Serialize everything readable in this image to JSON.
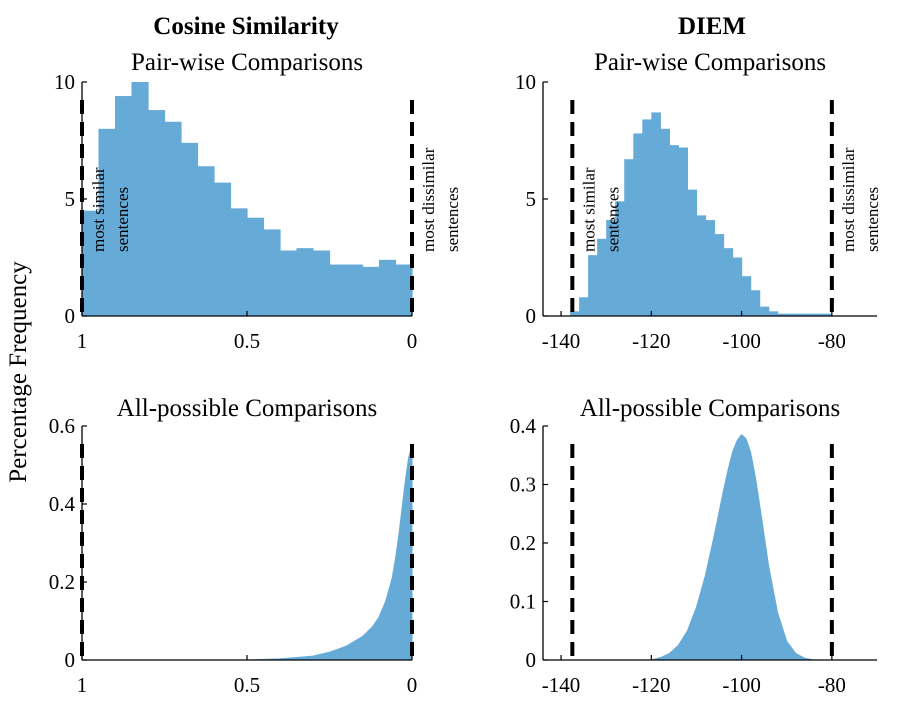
{
  "figure": {
    "ylabel": "Percentage Frequency",
    "colors": {
      "fill": "#66aad8",
      "axis": "#000000",
      "threshold": "#000000"
    },
    "column_titles": [
      "Cosine Similarity",
      "DIEM"
    ]
  },
  "chart_data": [
    {
      "type": "bar",
      "title": "Cosine Similarity",
      "subtitle": "Pair-wise Comparisons",
      "xlabel": "",
      "ylabel": "Percentage Frequency",
      "xlim": [
        1,
        0
      ],
      "x_reversed": true,
      "ylim": [
        0,
        10
      ],
      "xticks": [
        1,
        0.5,
        0
      ],
      "xtick_labels": [
        "1",
        "0.5",
        "0"
      ],
      "yticks": [
        0,
        5,
        10
      ],
      "ytick_labels": [
        "0",
        "5",
        "10"
      ],
      "bin_edges": [
        1,
        0.95,
        0.9,
        0.85,
        0.8,
        0.75,
        0.7,
        0.65,
        0.6,
        0.55,
        0.5,
        0.45,
        0.4,
        0.35,
        0.3,
        0.25,
        0.2,
        0.15,
        0.1,
        0.05,
        0
      ],
      "values": [
        4.5,
        8.0,
        9.4,
        10.0,
        8.8,
        8.3,
        7.4,
        6.4,
        5.7,
        4.6,
        4.2,
        3.7,
        2.8,
        2.9,
        2.8,
        2.2,
        2.2,
        2.1,
        2.4,
        2.2
      ],
      "thresholds": [
        1,
        0
      ],
      "annotations": [
        {
          "lines": [
            "most similar",
            "sentences"
          ],
          "x": 1
        },
        {
          "lines": [
            "most dissimilar",
            "sentences"
          ],
          "x": 0
        }
      ]
    },
    {
      "type": "bar",
      "title": "DIEM",
      "subtitle": "Pair-wise Comparisons",
      "xlabel": "",
      "ylabel": "",
      "xlim": [
        -144,
        -70
      ],
      "ylim": [
        0,
        10
      ],
      "xticks": [
        -140,
        -120,
        -100,
        -80
      ],
      "xtick_labels": [
        "-140",
        "-120",
        "-100",
        "-80"
      ],
      "yticks": [
        0,
        5,
        10
      ],
      "ytick_labels": [
        "0",
        "5",
        "10"
      ],
      "bin_edges": [
        -138,
        -136,
        -134,
        -132,
        -130,
        -128,
        -126,
        -124,
        -122,
        -120,
        -118,
        -116,
        -114,
        -112,
        -110,
        -108,
        -106,
        -104,
        -102,
        -100,
        -98,
        -96,
        -94,
        -92,
        -90,
        -88,
        -86,
        -84,
        -82,
        -80
      ],
      "values": [
        0.2,
        0.8,
        2.6,
        3.3,
        4.1,
        4.9,
        6.7,
        7.8,
        8.4,
        8.7,
        8.0,
        7.3,
        7.2,
        5.4,
        4.3,
        4.1,
        3.5,
        2.9,
        2.5,
        1.7,
        1.1,
        0.4,
        0.2,
        0.1,
        0.1,
        0.1,
        0.1,
        0.1,
        0.1
      ],
      "thresholds": [
        -137.5,
        -80
      ],
      "annotations": [
        {
          "lines": [
            "most similar",
            "sentences"
          ],
          "x": -137.5
        },
        {
          "lines": [
            "most dissimilar",
            "sentences"
          ],
          "x": -80
        }
      ]
    },
    {
      "type": "area",
      "title": "",
      "subtitle": "All-possible Comparisons",
      "xlabel": "",
      "ylabel": "Percentage Frequency",
      "xlim": [
        1,
        0
      ],
      "x_reversed": true,
      "ylim": [
        0,
        0.6
      ],
      "xticks": [
        1,
        0.5,
        0
      ],
      "xtick_labels": [
        "1",
        "0.5",
        "0"
      ],
      "yticks": [
        0,
        0.2,
        0.4,
        0.6
      ],
      "ytick_labels": [
        "0",
        "0.2",
        "0.4",
        "0.6"
      ],
      "x": [
        0.5,
        0.4,
        0.3,
        0.25,
        0.2,
        0.15,
        0.12,
        0.1,
        0.08,
        0.06,
        0.05,
        0.04,
        0.03,
        0.02,
        0.01,
        0.0
      ],
      "y": [
        0.0,
        0.003,
        0.01,
        0.02,
        0.035,
        0.06,
        0.085,
        0.11,
        0.15,
        0.21,
        0.26,
        0.32,
        0.39,
        0.46,
        0.52,
        0.55
      ],
      "thresholds": [
        1,
        0
      ]
    },
    {
      "type": "area",
      "title": "",
      "subtitle": "All-possible Comparisons",
      "xlabel": "",
      "ylabel": "",
      "xlim": [
        -144,
        -70
      ],
      "ylim": [
        0,
        0.4
      ],
      "xticks": [
        -140,
        -120,
        -100,
        -80
      ],
      "xtick_labels": [
        "-140",
        "-120",
        "-100",
        "-80"
      ],
      "yticks": [
        0,
        0.1,
        0.2,
        0.3,
        0.4
      ],
      "ytick_labels": [
        "0",
        "0.1",
        "0.2",
        "0.3",
        "0.4"
      ],
      "x": [
        -120,
        -118,
        -116,
        -114,
        -112,
        -110,
        -108,
        -106,
        -104,
        -103,
        -102,
        -101,
        -100,
        -99,
        -98,
        -97,
        -96,
        -94,
        -92,
        -90,
        -88,
        -86,
        -84
      ],
      "y": [
        0.0,
        0.004,
        0.011,
        0.025,
        0.05,
        0.09,
        0.145,
        0.215,
        0.29,
        0.325,
        0.355,
        0.375,
        0.385,
        0.378,
        0.355,
        0.315,
        0.265,
        0.16,
        0.08,
        0.032,
        0.011,
        0.003,
        0.0
      ],
      "thresholds": [
        -137.5,
        -80
      ]
    }
  ]
}
